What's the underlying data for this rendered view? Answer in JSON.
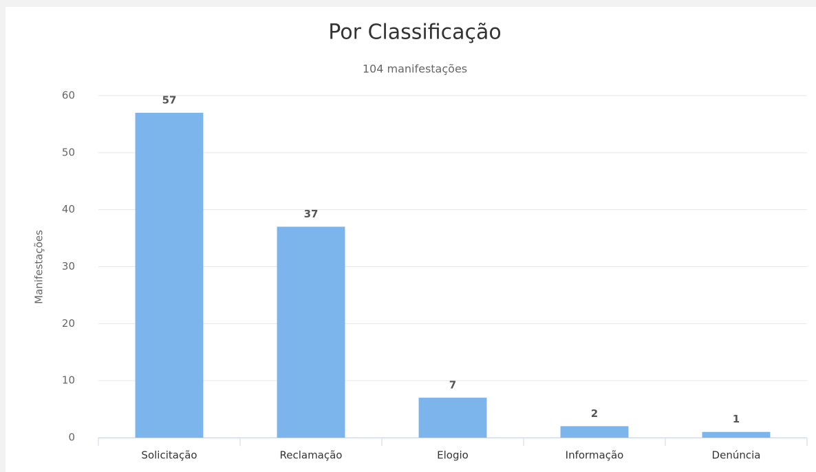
{
  "chart_data": {
    "type": "bar",
    "title": "Por Classificação",
    "subtitle": "104 manifestações",
    "y_label": "Manifestações",
    "categories": [
      "Solicitação",
      "Reclamação",
      "Elogio",
      "Informação",
      "Denúncia"
    ],
    "values": [
      57,
      37,
      7,
      2,
      1
    ],
    "color": "#7cb5ec",
    "ylim": [
      0,
      60
    ],
    "yticks": [
      0,
      10,
      20,
      30,
      40,
      50,
      60
    ],
    "grid": true,
    "data_labels": true
  }
}
